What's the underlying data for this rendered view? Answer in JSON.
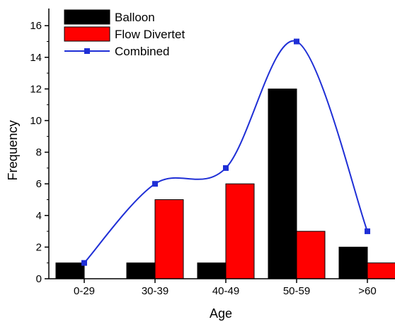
{
  "chart_data": {
    "type": "bar",
    "categories": [
      "0-29",
      "30-39",
      "40-49",
      "50-59",
      ">60"
    ],
    "series": [
      {
        "name": "Balloon",
        "kind": "bar",
        "color": "#000000",
        "values": [
          1,
          1,
          1,
          12,
          2
        ]
      },
      {
        "name": "Flow Divertet",
        "kind": "bar",
        "color": "#ff0000",
        "values": [
          0,
          5,
          6,
          3,
          1
        ]
      },
      {
        "name": "Combined",
        "kind": "line-spline",
        "color": "#1f2fd6",
        "marker": "square",
        "values": [
          1,
          6,
          7,
          15,
          3
        ]
      }
    ],
    "xlabel": "Age",
    "ylabel": "Frequency",
    "ylim": [
      0,
      17
    ],
    "yticks": [
      0,
      2,
      4,
      6,
      8,
      10,
      12,
      14,
      16
    ],
    "grid": false,
    "legend_position": "top-left"
  }
}
